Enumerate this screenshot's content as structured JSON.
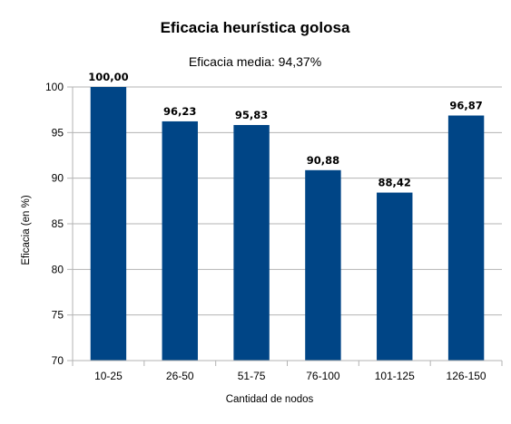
{
  "chart_data": {
    "type": "bar",
    "title": "Eficacia heurística golosa",
    "subtitle": "Eficacia media: 94,37%",
    "xlabel": "Cantidad de nodos",
    "ylabel": "Eficacia (en %)",
    "categories": [
      "10-25",
      "26-50",
      "51-75",
      "76-100",
      "101-125",
      "126-150"
    ],
    "values": [
      100.0,
      96.23,
      95.83,
      90.88,
      88.42,
      96.87
    ],
    "data_labels": [
      "100,00",
      "96,23",
      "95,83",
      "90,88",
      "88,42",
      "96,87"
    ],
    "ylim": [
      70,
      100
    ],
    "yticks": [
      70,
      75,
      80,
      85,
      90,
      95,
      100
    ],
    "grid": true,
    "legend": "none",
    "colors": {
      "bar": "#004586",
      "grid": "#b3b3b3",
      "axis": "#b3b3b3"
    }
  }
}
